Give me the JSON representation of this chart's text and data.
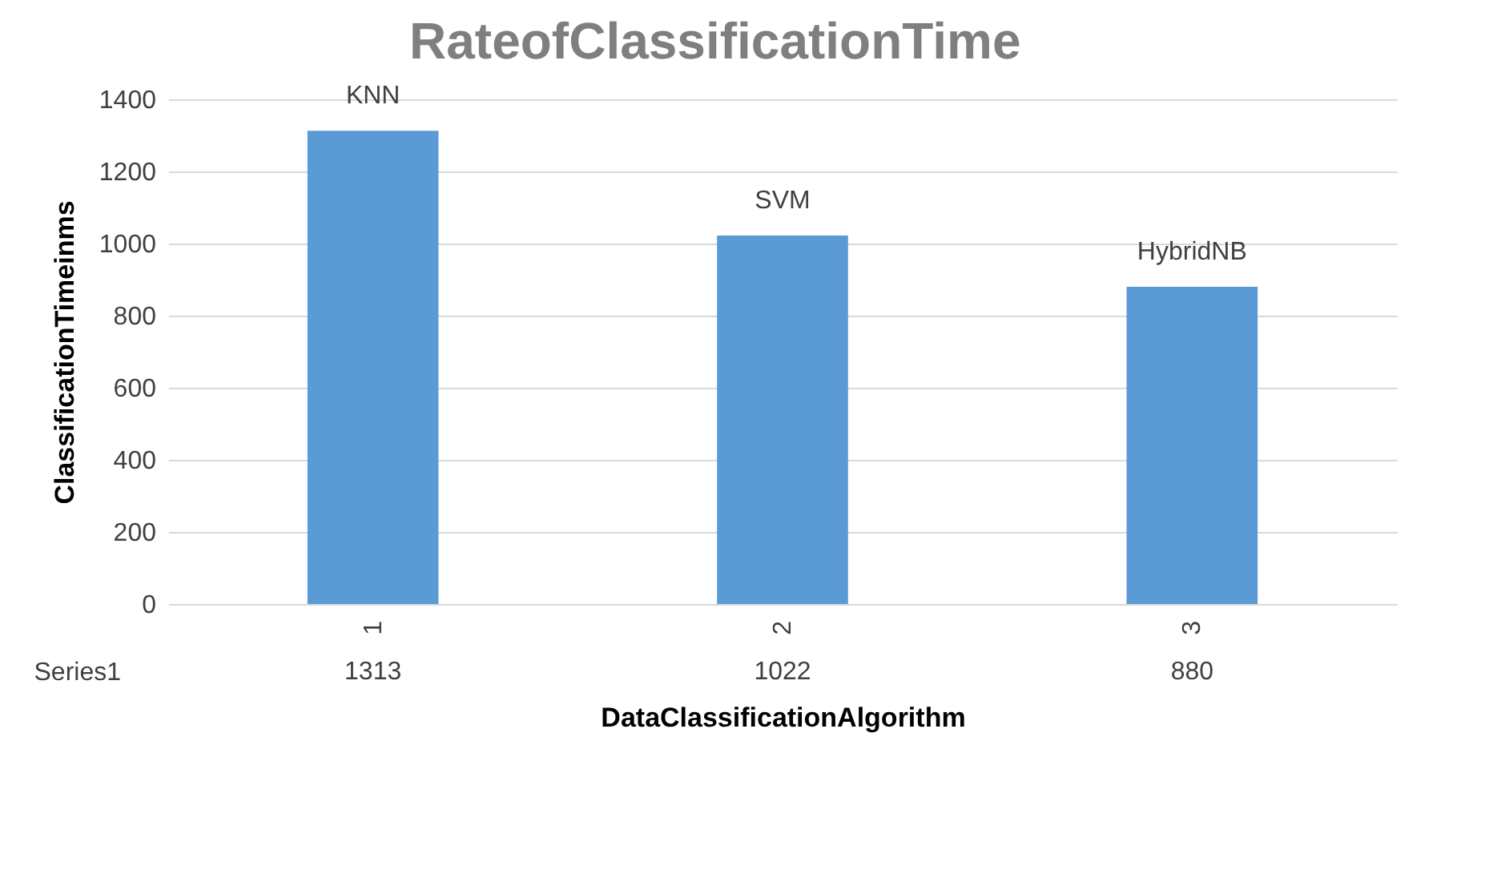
{
  "chart_data": {
    "type": "bar",
    "title": "RateofClassificationTime",
    "xlabel": "DataClassificationAlgorithm",
    "ylabel": "ClassificationTimeinms",
    "categories": [
      "1",
      "2",
      "3"
    ],
    "series": [
      {
        "name": "Series1",
        "color": "#5b9bd5",
        "values": [
          1313,
          1022,
          880
        ]
      }
    ],
    "ylim": [
      0,
      1400
    ],
    "yticks": [
      0,
      200,
      400,
      600,
      800,
      1000,
      1200,
      1400
    ],
    "grid": "y",
    "data_labels": true,
    "annotations": [
      {
        "text": "KNN",
        "x": "1",
        "y": 1313
      },
      {
        "text": "SVM",
        "x": "2",
        "y": 1022
      },
      {
        "text": "HybridNB",
        "x": "3",
        "y": 880
      }
    ]
  }
}
